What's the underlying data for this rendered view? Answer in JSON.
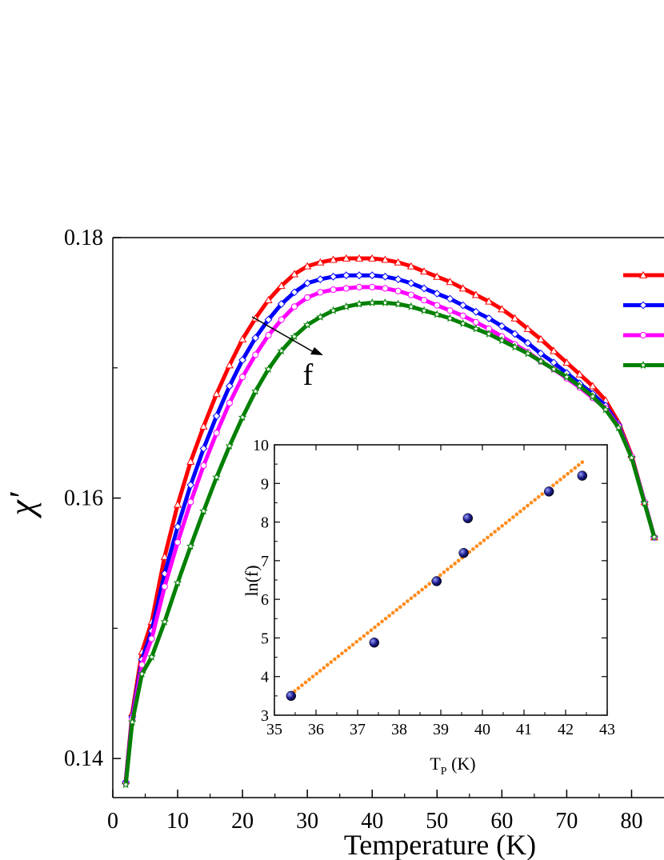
{
  "chart_data": [
    {
      "type": "line",
      "xlabel": "Temperature (K)",
      "ylabel": "χ′",
      "xlim": [
        0,
        85
      ],
      "ylim": [
        0.137,
        0.18
      ],
      "x_ticks": [
        "0",
        "10",
        "20",
        "30",
        "40",
        "50",
        "60",
        "70",
        "80"
      ],
      "y_ticks": [
        "0.14",
        "0.16",
        "0.18"
      ],
      "annotation": "f",
      "legend": "right",
      "series": [
        {
          "color": "#ff0000",
          "marker": "triangle",
          "x": [
            2,
            3,
            4.5,
            6,
            8,
            10,
            12,
            14,
            16,
            18,
            20,
            22,
            24,
            26,
            28,
            30,
            32,
            34,
            36,
            38,
            40,
            42,
            44,
            46,
            48,
            50,
            52,
            54,
            56,
            58,
            60,
            62,
            64,
            66,
            68,
            70,
            72,
            74,
            76,
            78,
            80,
            82,
            83.5
          ],
          "y": [
            0.1383,
            0.1435,
            0.1482,
            0.1505,
            0.1555,
            0.1595,
            0.1628,
            0.1655,
            0.168,
            0.1702,
            0.1722,
            0.1738,
            0.1752,
            0.1763,
            0.1772,
            0.1778,
            0.1781,
            0.1783,
            0.1784,
            0.1784,
            0.1784,
            0.1783,
            0.1781,
            0.1778,
            0.1774,
            0.177,
            0.1766,
            0.1761,
            0.1756,
            0.1751,
            0.1745,
            0.1738,
            0.173,
            0.1722,
            0.1713,
            0.1704,
            0.1695,
            0.1686,
            0.1675,
            0.1658,
            0.1633,
            0.1597,
            0.157
          ]
        },
        {
          "color": "#0000ff",
          "marker": "diamond",
          "x": [
            2,
            3,
            4.5,
            6,
            8,
            10,
            12,
            14,
            16,
            18,
            20,
            22,
            24,
            26,
            28,
            30,
            32,
            34,
            36,
            38,
            40,
            42,
            44,
            46,
            48,
            50,
            52,
            54,
            56,
            58,
            60,
            62,
            64,
            66,
            68,
            70,
            72,
            74,
            76,
            78,
            80,
            82,
            83.5
          ],
          "y": [
            0.1382,
            0.1432,
            0.1476,
            0.1498,
            0.1542,
            0.1578,
            0.161,
            0.1638,
            0.1663,
            0.1686,
            0.1706,
            0.1723,
            0.1737,
            0.1749,
            0.1758,
            0.1765,
            0.1768,
            0.177,
            0.1771,
            0.1771,
            0.1771,
            0.177,
            0.1768,
            0.1765,
            0.1761,
            0.1757,
            0.1753,
            0.1748,
            0.1743,
            0.1738,
            0.1732,
            0.1726,
            0.1719,
            0.1711,
            0.1704,
            0.1696,
            0.1688,
            0.168,
            0.1671,
            0.1656,
            0.1632,
            0.1597,
            0.157
          ]
        },
        {
          "color": "#ff00ff",
          "marker": "circle",
          "x": [
            2,
            3,
            4.5,
            6,
            8,
            10,
            12,
            14,
            16,
            18,
            20,
            22,
            24,
            26,
            28,
            30,
            32,
            34,
            36,
            38,
            40,
            42,
            44,
            46,
            48,
            50,
            52,
            54,
            56,
            58,
            60,
            62,
            64,
            66,
            68,
            70,
            72,
            74,
            76,
            78,
            80,
            82,
            83.5
          ],
          "y": [
            0.1381,
            0.143,
            0.1472,
            0.1492,
            0.1532,
            0.1566,
            0.1597,
            0.1625,
            0.165,
            0.1673,
            0.1693,
            0.171,
            0.1725,
            0.1737,
            0.1747,
            0.1754,
            0.1758,
            0.176,
            0.1761,
            0.1762,
            0.1762,
            0.1761,
            0.1759,
            0.1756,
            0.1752,
            0.1748,
            0.1744,
            0.174,
            0.1735,
            0.173,
            0.1724,
            0.1718,
            0.1712,
            0.1705,
            0.1699,
            0.1692,
            0.1685,
            0.1677,
            0.1669,
            0.1655,
            0.1632,
            0.1597,
            0.157
          ]
        },
        {
          "color": "#008000",
          "marker": "star",
          "x": [
            2,
            3,
            4.5,
            6,
            8,
            10,
            12,
            14,
            16,
            18,
            20,
            22,
            24,
            26,
            28,
            30,
            32,
            34,
            36,
            38,
            40,
            42,
            44,
            46,
            48,
            50,
            52,
            54,
            56,
            58,
            60,
            62,
            64,
            66,
            68,
            70,
            72,
            74,
            76,
            78,
            80,
            82,
            83.5
          ],
          "y": [
            0.138,
            0.1428,
            0.1465,
            0.1478,
            0.1505,
            0.1535,
            0.1563,
            0.159,
            0.1616,
            0.164,
            0.1662,
            0.1682,
            0.1699,
            0.1713,
            0.1724,
            0.1733,
            0.1739,
            0.1744,
            0.1747,
            0.1749,
            0.175,
            0.175,
            0.1749,
            0.1747,
            0.1744,
            0.1741,
            0.1738,
            0.1734,
            0.173,
            0.1726,
            0.1721,
            0.1716,
            0.1711,
            0.1705,
            0.1699,
            0.1693,
            0.1686,
            0.1678,
            0.1668,
            0.1654,
            0.1631,
            0.1596,
            0.157
          ]
        }
      ]
    },
    {
      "type": "scatter",
      "xlabel": "T",
      "xlabel_sub": "P",
      "xlabel_unit": " (K)",
      "ylabel": "ln(f)",
      "xlim": [
        35,
        43
      ],
      "ylim": [
        3,
        10
      ],
      "x_ticks": [
        "35",
        "36",
        "37",
        "38",
        "39",
        "40",
        "41",
        "42",
        "43"
      ],
      "y_ticks": [
        "3",
        "4",
        "5",
        "6",
        "7",
        "8",
        "9",
        "10"
      ],
      "points": {
        "color": "#1c1c8a",
        "x": [
          35.4,
          37.4,
          38.9,
          39.55,
          39.65,
          41.6,
          42.4
        ],
        "y": [
          3.5,
          4.88,
          6.47,
          7.2,
          8.1,
          8.79,
          9.2
        ]
      },
      "fit": {
        "color": "#ff8c1a",
        "x": [
          35.4,
          42.4
        ],
        "y": [
          3.55,
          9.55
        ]
      }
    }
  ]
}
